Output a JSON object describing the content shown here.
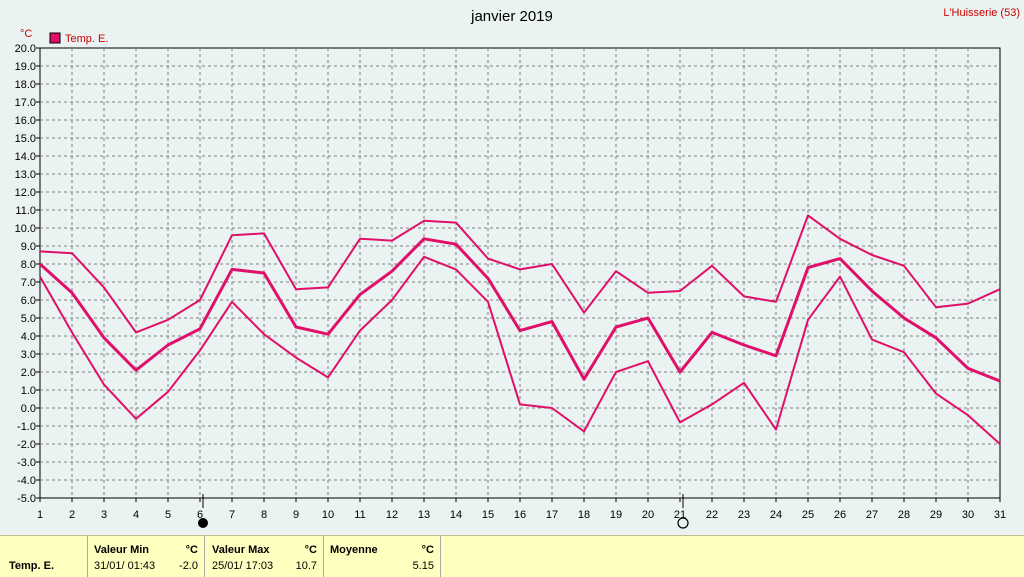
{
  "chart_data": {
    "type": "line",
    "title": "janvier 2019",
    "site": "L'Huisserie (53)",
    "unit": "°C",
    "legend": [
      {
        "name": "Temp. E.",
        "color": "#e0106a"
      }
    ],
    "ylim": [
      -5.0,
      20.0
    ],
    "ytick_step": 1.0,
    "y_ticks": [
      "20.0",
      "19.0",
      "18.0",
      "17.0",
      "16.0",
      "15.0",
      "14.0",
      "13.0",
      "12.0",
      "11.0",
      "10.0",
      "9.0",
      "8.0",
      "7.0",
      "6.0",
      "5.0",
      "4.0",
      "3.0",
      "2.0",
      "1.0",
      "0.0",
      "-1.0",
      "-2.0",
      "-3.0",
      "-4.0",
      "-5.0"
    ],
    "x": [
      "1",
      "2",
      "3",
      "4",
      "5",
      "6",
      "7",
      "8",
      "9",
      "10",
      "11",
      "12",
      "13",
      "14",
      "15",
      "16",
      "17",
      "18",
      "19",
      "20",
      "21",
      "22",
      "23",
      "24",
      "25",
      "26",
      "27",
      "28",
      "29",
      "30",
      "31"
    ],
    "grid": true,
    "series": [
      {
        "role": "max",
        "values": [
          8.7,
          8.6,
          6.7,
          4.2,
          4.9,
          6.0,
          9.6,
          9.7,
          6.6,
          6.7,
          9.4,
          9.3,
          10.4,
          10.3,
          8.3,
          7.7,
          8.0,
          5.3,
          7.6,
          6.4,
          6.5,
          7.9,
          6.2,
          5.9,
          10.7,
          9.4,
          8.5,
          7.9,
          5.6,
          5.8,
          6.6
        ]
      },
      {
        "role": "mean",
        "values": [
          8.0,
          6.4,
          3.9,
          2.1,
          3.5,
          4.4,
          7.7,
          7.5,
          4.5,
          4.1,
          6.3,
          7.6,
          9.4,
          9.1,
          7.2,
          4.3,
          4.8,
          1.6,
          4.5,
          5.0,
          2.0,
          4.2,
          3.5,
          2.9,
          7.8,
          8.3,
          6.5,
          5.0,
          3.9,
          2.2,
          1.5
        ]
      },
      {
        "role": "min",
        "values": [
          7.3,
          4.2,
          1.3,
          -0.6,
          0.9,
          3.2,
          5.9,
          4.1,
          2.8,
          1.7,
          4.3,
          6.0,
          8.4,
          7.7,
          5.9,
          0.2,
          0.0,
          -1.3,
          2.0,
          2.6,
          -0.8,
          0.2,
          1.4,
          -1.2,
          4.9,
          7.3,
          3.8,
          3.1,
          0.8,
          -0.4,
          -2.0
        ]
      }
    ],
    "moon_phases": [
      {
        "day": 6,
        "phase": "new-moon"
      },
      {
        "day": 21,
        "phase": "full-moon"
      }
    ]
  },
  "summary": {
    "series_label": "Temp. E.",
    "min_label": "Valeur Min",
    "min_unit": "°C",
    "min_date": "31/01/ 01:43",
    "min_value": "-2.0",
    "max_label": "Valeur Max",
    "max_unit": "°C",
    "max_date": "25/01/ 17:03",
    "max_value": "10.7",
    "avg_label": "Moyenne",
    "avg_unit": "°C",
    "avg_value": "5.15"
  }
}
